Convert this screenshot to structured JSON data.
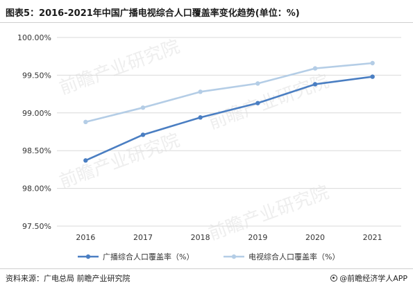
{
  "title": "图表5：2016-2021年中国广播电视综合人口覆盖率变化趋势(单位：%)",
  "source": "资料来源：广电总局 前瞻产业研究院",
  "brand": "@前瞻经济学人APP",
  "watermark": "前瞻产业研究院",
  "colors": {
    "broadcast": "#4a7ec2",
    "tv": "#b4cde6",
    "grid": "#d9d9d9",
    "axis_text": "#333333"
  },
  "chart_data": {
    "type": "line",
    "categories": [
      "2016",
      "2017",
      "2018",
      "2019",
      "2020",
      "2021"
    ],
    "ylim": [
      97.5,
      100.0
    ],
    "yticks": [
      97.5,
      98.0,
      98.5,
      99.0,
      99.5,
      100.0
    ],
    "ytick_labels": [
      "97.50%",
      "98.00%",
      "98.50%",
      "99.00%",
      "99.50%",
      "100.00%"
    ],
    "grid": true,
    "legend": "bottom",
    "series": [
      {
        "name": "广播综合人口覆盖率（%）",
        "values": [
          98.37,
          98.71,
          98.94,
          99.13,
          99.38,
          99.48
        ]
      },
      {
        "name": "电视综合人口覆盖率（%）",
        "values": [
          98.88,
          99.07,
          99.28,
          99.39,
          99.59,
          99.66
        ]
      }
    ]
  }
}
